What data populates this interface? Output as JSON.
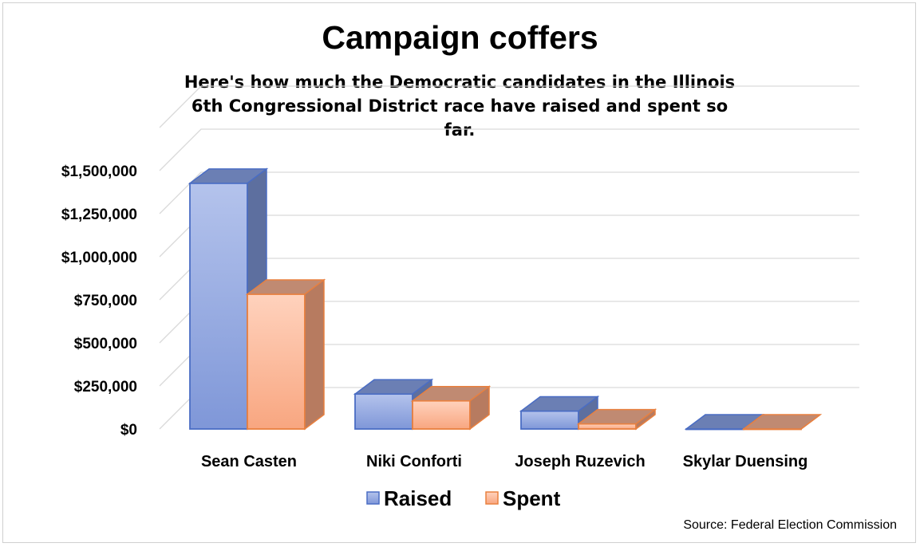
{
  "title": "Campaign coffers",
  "subtitle": "Here's how much the Democratic candidates in the Illinois 6th Congressional District race have raised and spent so far.",
  "source": "Source: Federal Election Commission",
  "chart_data": {
    "type": "bar",
    "style": "3d-clustered-column",
    "categories": [
      "Sean Casten",
      "Niki Conforti",
      "Joseph Ruzevich",
      "Skylar Duensing"
    ],
    "series": [
      {
        "name": "Raised",
        "color": "#8ea3dc",
        "values": [
          1440000,
          205000,
          105000,
          0
        ]
      },
      {
        "name": "Spent",
        "color": "#f5a37f",
        "values": [
          790000,
          165000,
          30000,
          0
        ]
      }
    ],
    "yticks": [
      "$0",
      "$250,000",
      "$500,000",
      "$750,000",
      "$1,000,000",
      "$1,250,000",
      "$1,500,000"
    ],
    "ylim": [
      0,
      1500000
    ],
    "grid": true,
    "legend_position": "bottom"
  }
}
